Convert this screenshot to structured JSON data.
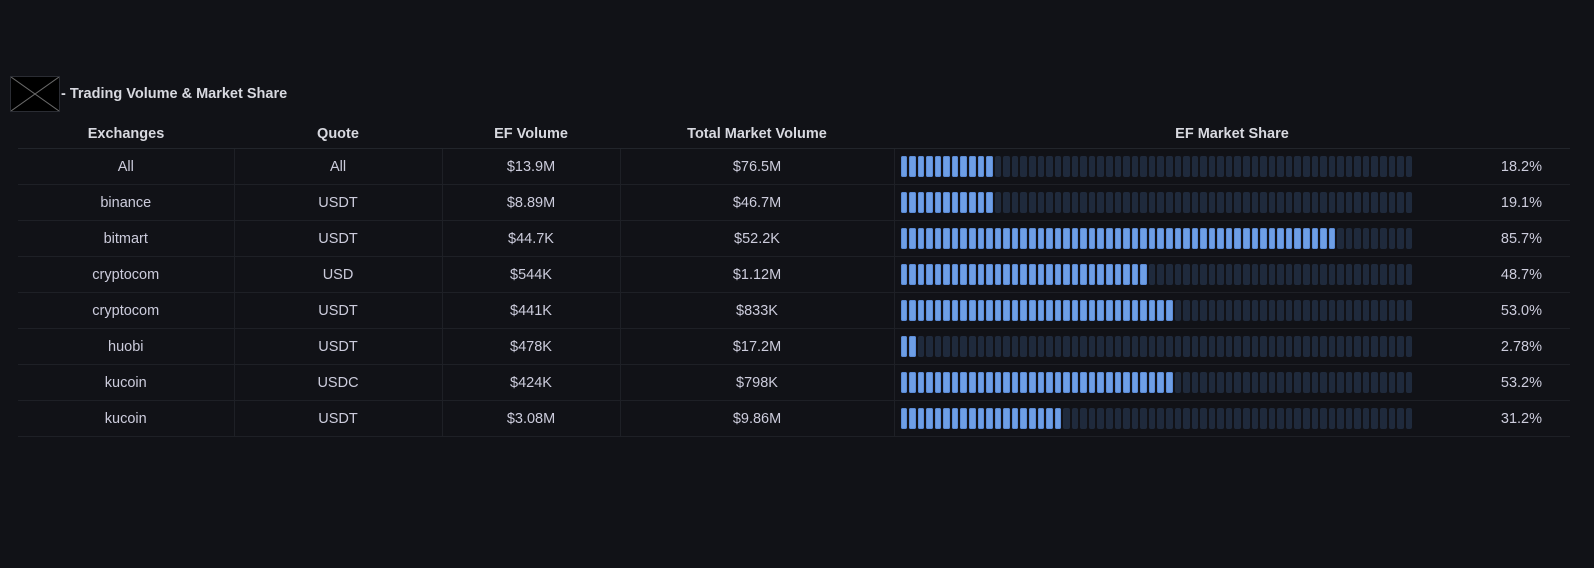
{
  "panel": {
    "title": "- Trading Volume & Market Share"
  },
  "table": {
    "columns": [
      "Exchanges",
      "Quote",
      "EF Volume",
      "Total Market Volume",
      "EF Market Share"
    ],
    "rows": [
      {
        "exchange": "All",
        "quote": "All",
        "ef_volume": "$13.9M",
        "total_volume": "$76.5M",
        "share": "18.2%",
        "share_value": 18.2
      },
      {
        "exchange": "binance",
        "quote": "USDT",
        "ef_volume": "$8.89M",
        "total_volume": "$46.7M",
        "share": "19.1%",
        "share_value": 19.1
      },
      {
        "exchange": "bitmart",
        "quote": "USDT",
        "ef_volume": "$44.7K",
        "total_volume": "$52.2K",
        "share": "85.7%",
        "share_value": 85.7
      },
      {
        "exchange": "cryptocom",
        "quote": "USD",
        "ef_volume": "$544K",
        "total_volume": "$1.12M",
        "share": "48.7%",
        "share_value": 48.7
      },
      {
        "exchange": "cryptocom",
        "quote": "USDT",
        "ef_volume": "$441K",
        "total_volume": "$833K",
        "share": "53.0%",
        "share_value": 53.0
      },
      {
        "exchange": "huobi",
        "quote": "USDT",
        "ef_volume": "$478K",
        "total_volume": "$17.2M",
        "share": "2.78%",
        "share_value": 2.78
      },
      {
        "exchange": "kucoin",
        "quote": "USDC",
        "ef_volume": "$424K",
        "total_volume": "$798K",
        "share": "53.2%",
        "share_value": 53.2
      },
      {
        "exchange": "kucoin",
        "quote": "USDT",
        "ef_volume": "$3.08M",
        "total_volume": "$9.86M",
        "share": "31.2%",
        "share_value": 31.2
      }
    ]
  },
  "colors": {
    "background": "#111217",
    "gauge_on": "#6e9fe6",
    "gauge_off": "#1f2a3c"
  },
  "icons": {
    "panel_logo": "broken-image-icon"
  }
}
